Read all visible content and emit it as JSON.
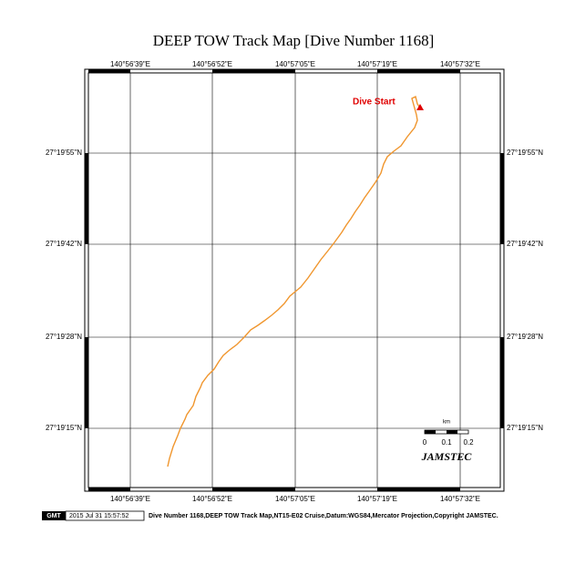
{
  "header": {
    "title": "DEEP TOW Track Map [Dive Number 1168]"
  },
  "map": {
    "longitude_labels": [
      "140°56'39\"E",
      "140°56'52\"E",
      "140°57'05\"E",
      "140°57'19\"E",
      "140°57'32\"E"
    ],
    "latitude_labels": [
      "27°19'55\"N",
      "27°19'42\"N",
      "27°19'28\"N",
      "27°19'15\"N"
    ],
    "annotation": "Dive Start",
    "scale": {
      "unit": "km",
      "labels": [
        "0",
        "0.1",
        "0.2"
      ]
    },
    "logo": "JAMSTEC"
  },
  "footer": {
    "badge": "GMT",
    "timestamp": "2015 Jul 31 15:57:52",
    "caption": "Dive Number 1168,DEEP TOW Track Map,NT15-E02 Cruise,Datum:WGS84,Mercator Projection,Copyright JAMSTEC."
  }
}
